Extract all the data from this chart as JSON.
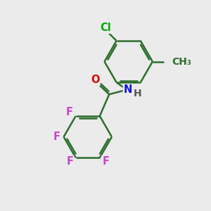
{
  "background_color": "#ebebeb",
  "bond_color": "#2d6e2d",
  "bond_width": 1.8,
  "atom_labels": {
    "Cl": {
      "color": "#00aa00",
      "fontsize": 10.5
    },
    "F": {
      "color": "#cc44cc",
      "fontsize": 10.5
    },
    "O": {
      "color": "#dd0000",
      "fontsize": 10.5
    },
    "N": {
      "color": "#1111dd",
      "fontsize": 10.5
    },
    "H": {
      "color": "#555555",
      "fontsize": 10.0
    },
    "CH3": {
      "color": "#2d6e2d",
      "fontsize": 10.0
    }
  },
  "figsize": [
    3.0,
    3.0
  ],
  "dpi": 100
}
